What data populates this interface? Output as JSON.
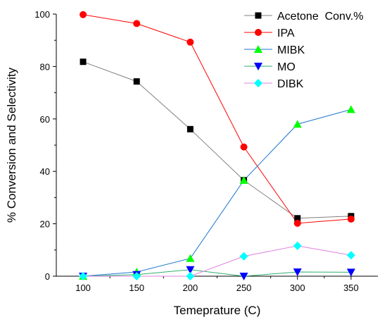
{
  "chart_data": {
    "type": "line",
    "title": "",
    "xlabel": "Temeprature (C)",
    "ylabel": "% Conversion and Selectivity",
    "xlim": [
      75,
      375
    ],
    "ylim": [
      0,
      100
    ],
    "x": [
      100,
      150,
      200,
      250,
      300,
      350
    ],
    "x_ticks": [
      "100",
      "150",
      "200",
      "250",
      "300",
      "350"
    ],
    "y_ticks": [
      "0",
      "20",
      "40",
      "60",
      "80",
      "100"
    ],
    "legend_position": "top-right",
    "series": [
      {
        "name": "Acetone  Conv.%",
        "color": "#000000",
        "line_color": "#808080",
        "marker": "square",
        "values": [
          81.8,
          74.3,
          56.1,
          36.6,
          22.1,
          22.9
        ]
      },
      {
        "name": "IPA",
        "color": "#ff0000",
        "line_color": "#ff0000",
        "marker": "circle",
        "values": [
          99.8,
          96.4,
          89.3,
          49.3,
          20.2,
          21.8
        ]
      },
      {
        "name": "MIBK",
        "color": "#00ff00",
        "line_color": "#1f77d0",
        "marker": "triangle-up",
        "values": [
          0.0,
          1.6,
          6.8,
          36.6,
          58.0,
          63.6
        ]
      },
      {
        "name": "MO",
        "color": "#0000ff",
        "line_color": "#2fae6e",
        "marker": "triangle-down",
        "values": [
          0.0,
          0.6,
          2.5,
          0.0,
          1.6,
          1.5
        ]
      },
      {
        "name": "DIBK",
        "color": "#00ffff",
        "line_color": "#e080e0",
        "marker": "diamond",
        "values": [
          0.0,
          0.0,
          0.0,
          7.6,
          11.6,
          8.0
        ]
      }
    ]
  }
}
